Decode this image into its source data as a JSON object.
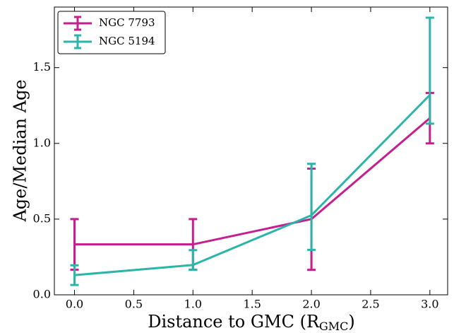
{
  "chart_data": {
    "type": "line",
    "xlabel": "Distance to GMC (R",
    "xlabel_sub": "GMC",
    "xlabel_end": ")",
    "ylabel": "Age/Median Age",
    "x": [
      0,
      1,
      2,
      3
    ],
    "series": [
      {
        "name": "NGC 7793",
        "color": "#c41f8e",
        "values": [
          0.333,
          0.333,
          0.5,
          1.167
        ],
        "yerr_lower": [
          0.167,
          0.167,
          0.335,
          0.167
        ],
        "yerr_upper": [
          0.167,
          0.167,
          0.333,
          0.166
        ]
      },
      {
        "name": "NGC 5194",
        "color": "#2bb5a8",
        "values": [
          0.13,
          0.197,
          0.525,
          1.32
        ],
        "yerr_lower": [
          0.065,
          0.032,
          0.228,
          0.19
        ],
        "yerr_upper": [
          0.065,
          0.098,
          0.34,
          0.51
        ]
      }
    ],
    "xlim": [
      -0.17,
      3.15
    ],
    "ylim": [
      0,
      1.9
    ],
    "xticks": [
      {
        "value": 0,
        "label": "0.0"
      },
      {
        "value": 0.5,
        "label": "0.5"
      },
      {
        "value": 1,
        "label": "1.0"
      },
      {
        "value": 1.5,
        "label": "1.5"
      },
      {
        "value": 2,
        "label": "2.0"
      },
      {
        "value": 2.5,
        "label": "2.5"
      },
      {
        "value": 3,
        "label": "3.0"
      }
    ],
    "yticks": [
      {
        "value": 0,
        "label": "0.0"
      },
      {
        "value": 0.5,
        "label": "0.5"
      },
      {
        "value": 1,
        "label": "1.0"
      },
      {
        "value": 1.5,
        "label": "1.5"
      }
    ],
    "legend": "upper left"
  }
}
